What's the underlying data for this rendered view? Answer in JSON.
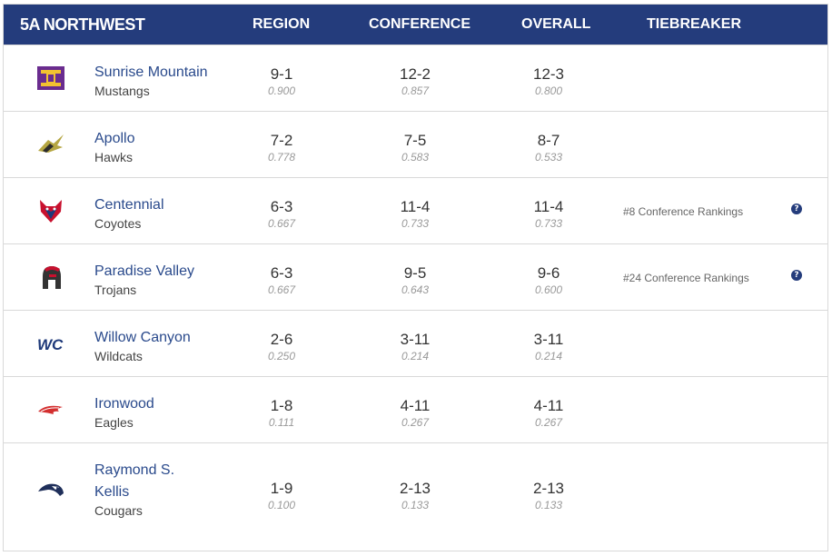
{
  "header": {
    "title": "5A NORTHWEST",
    "region": "REGION",
    "conference": "CONFERENCE",
    "overall": "OVERALL",
    "tiebreaker": "TIEBREAKER"
  },
  "teams": [
    {
      "name": "Sunrise Mountain",
      "mascot": "Mustangs",
      "logo": "mustangs-logo",
      "region": {
        "wl": "9-1",
        "pct": "0.900"
      },
      "conference": {
        "wl": "12-2",
        "pct": "0.857"
      },
      "overall": {
        "wl": "12-3",
        "pct": "0.800"
      },
      "tiebreaker": ""
    },
    {
      "name": "Apollo",
      "mascot": "Hawks",
      "logo": "hawks-logo",
      "region": {
        "wl": "7-2",
        "pct": "0.778"
      },
      "conference": {
        "wl": "7-5",
        "pct": "0.583"
      },
      "overall": {
        "wl": "8-7",
        "pct": "0.533"
      },
      "tiebreaker": ""
    },
    {
      "name": "Centennial",
      "mascot": "Coyotes",
      "logo": "coyotes-logo",
      "region": {
        "wl": "6-3",
        "pct": "0.667"
      },
      "conference": {
        "wl": "11-4",
        "pct": "0.733"
      },
      "overall": {
        "wl": "11-4",
        "pct": "0.733"
      },
      "tiebreaker": "#8 Conference Rankings"
    },
    {
      "name": "Paradise Valley",
      "mascot": "Trojans",
      "logo": "trojans-logo",
      "region": {
        "wl": "6-3",
        "pct": "0.667"
      },
      "conference": {
        "wl": "9-5",
        "pct": "0.643"
      },
      "overall": {
        "wl": "9-6",
        "pct": "0.600"
      },
      "tiebreaker": "#24 Conference Rankings"
    },
    {
      "name": "Willow Canyon",
      "mascot": "Wildcats",
      "logo": "wildcats-logo",
      "region": {
        "wl": "2-6",
        "pct": "0.250"
      },
      "conference": {
        "wl": "3-11",
        "pct": "0.214"
      },
      "overall": {
        "wl": "3-11",
        "pct": "0.214"
      },
      "tiebreaker": ""
    },
    {
      "name": "Ironwood",
      "mascot": "Eagles",
      "logo": "eagles-logo",
      "region": {
        "wl": "1-8",
        "pct": "0.111"
      },
      "conference": {
        "wl": "4-11",
        "pct": "0.267"
      },
      "overall": {
        "wl": "4-11",
        "pct": "0.267"
      },
      "tiebreaker": ""
    },
    {
      "name_line1": "Raymond S.",
      "name_line2": "Kellis",
      "mascot": "Cougars",
      "logo": "cougars-logo",
      "region": {
        "wl": "1-9",
        "pct": "0.100"
      },
      "conference": {
        "wl": "2-13",
        "pct": "0.133"
      },
      "overall": {
        "wl": "2-13",
        "pct": "0.133"
      },
      "tiebreaker": ""
    }
  ],
  "help_glyph": "?"
}
